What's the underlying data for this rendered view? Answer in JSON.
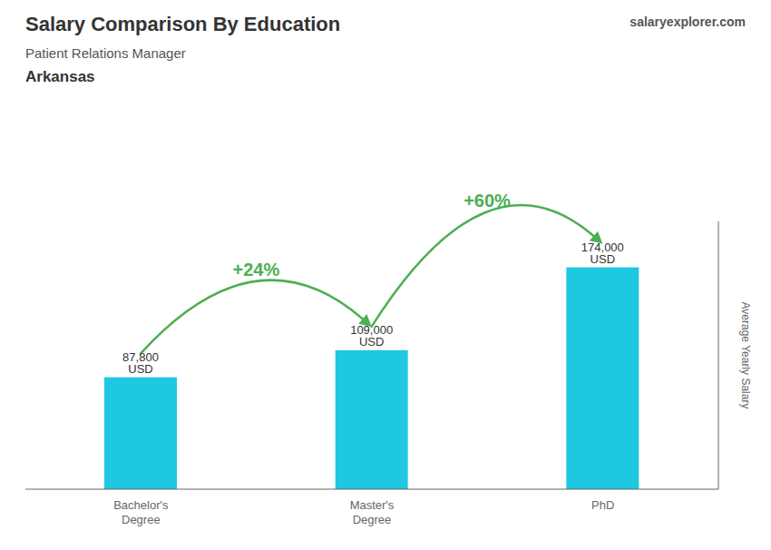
{
  "chart_data": {
    "type": "bar",
    "title": "Salary Comparison By Education",
    "subtitle": "Patient Relations Manager",
    "location": "Arkansas",
    "brand": "salaryexplorer.com",
    "ylabel": "Average Yearly Salary",
    "categories": [
      "Bachelor's\nDegree",
      "Master's\nDegree",
      "PhD"
    ],
    "values": [
      87800,
      109000,
      174000
    ],
    "value_labels": [
      "87,800 USD",
      "109,000 USD",
      "174,000 USD"
    ],
    "annotations": [
      "+24%",
      "+60%"
    ],
    "color": "#1ec8e0",
    "ylim": [
      0,
      210000
    ],
    "grid": false,
    "data_labels": true,
    "tick_labels": "x"
  }
}
